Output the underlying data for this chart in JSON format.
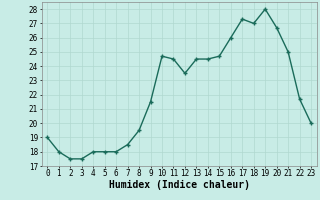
{
  "x": [
    0,
    1,
    2,
    3,
    4,
    5,
    6,
    7,
    8,
    9,
    10,
    11,
    12,
    13,
    14,
    15,
    16,
    17,
    18,
    19,
    20,
    21,
    22,
    23
  ],
  "y": [
    19,
    18,
    17.5,
    17.5,
    18,
    18,
    18,
    18.5,
    19.5,
    21.5,
    24.7,
    24.5,
    23.5,
    24.5,
    24.5,
    24.7,
    26,
    27.3,
    27,
    28,
    26.7,
    25,
    21.7,
    20
  ],
  "line_color": "#1a6b5a",
  "marker_color": "#1a6b5a",
  "bg_color": "#c8ece6",
  "grid_color": "#b0d8d0",
  "xlabel": "Humidex (Indice chaleur)",
  "xlabel_fontsize": 7,
  "xlim": [
    -0.5,
    23.5
  ],
  "ylim": [
    17,
    28.5
  ],
  "yticks": [
    17,
    18,
    19,
    20,
    21,
    22,
    23,
    24,
    25,
    26,
    27,
    28
  ],
  "xticks": [
    0,
    1,
    2,
    3,
    4,
    5,
    6,
    7,
    8,
    9,
    10,
    11,
    12,
    13,
    14,
    15,
    16,
    17,
    18,
    19,
    20,
    21,
    22,
    23
  ],
  "tick_fontsize": 5.5,
  "line_width": 1.0,
  "marker_size": 2.5
}
